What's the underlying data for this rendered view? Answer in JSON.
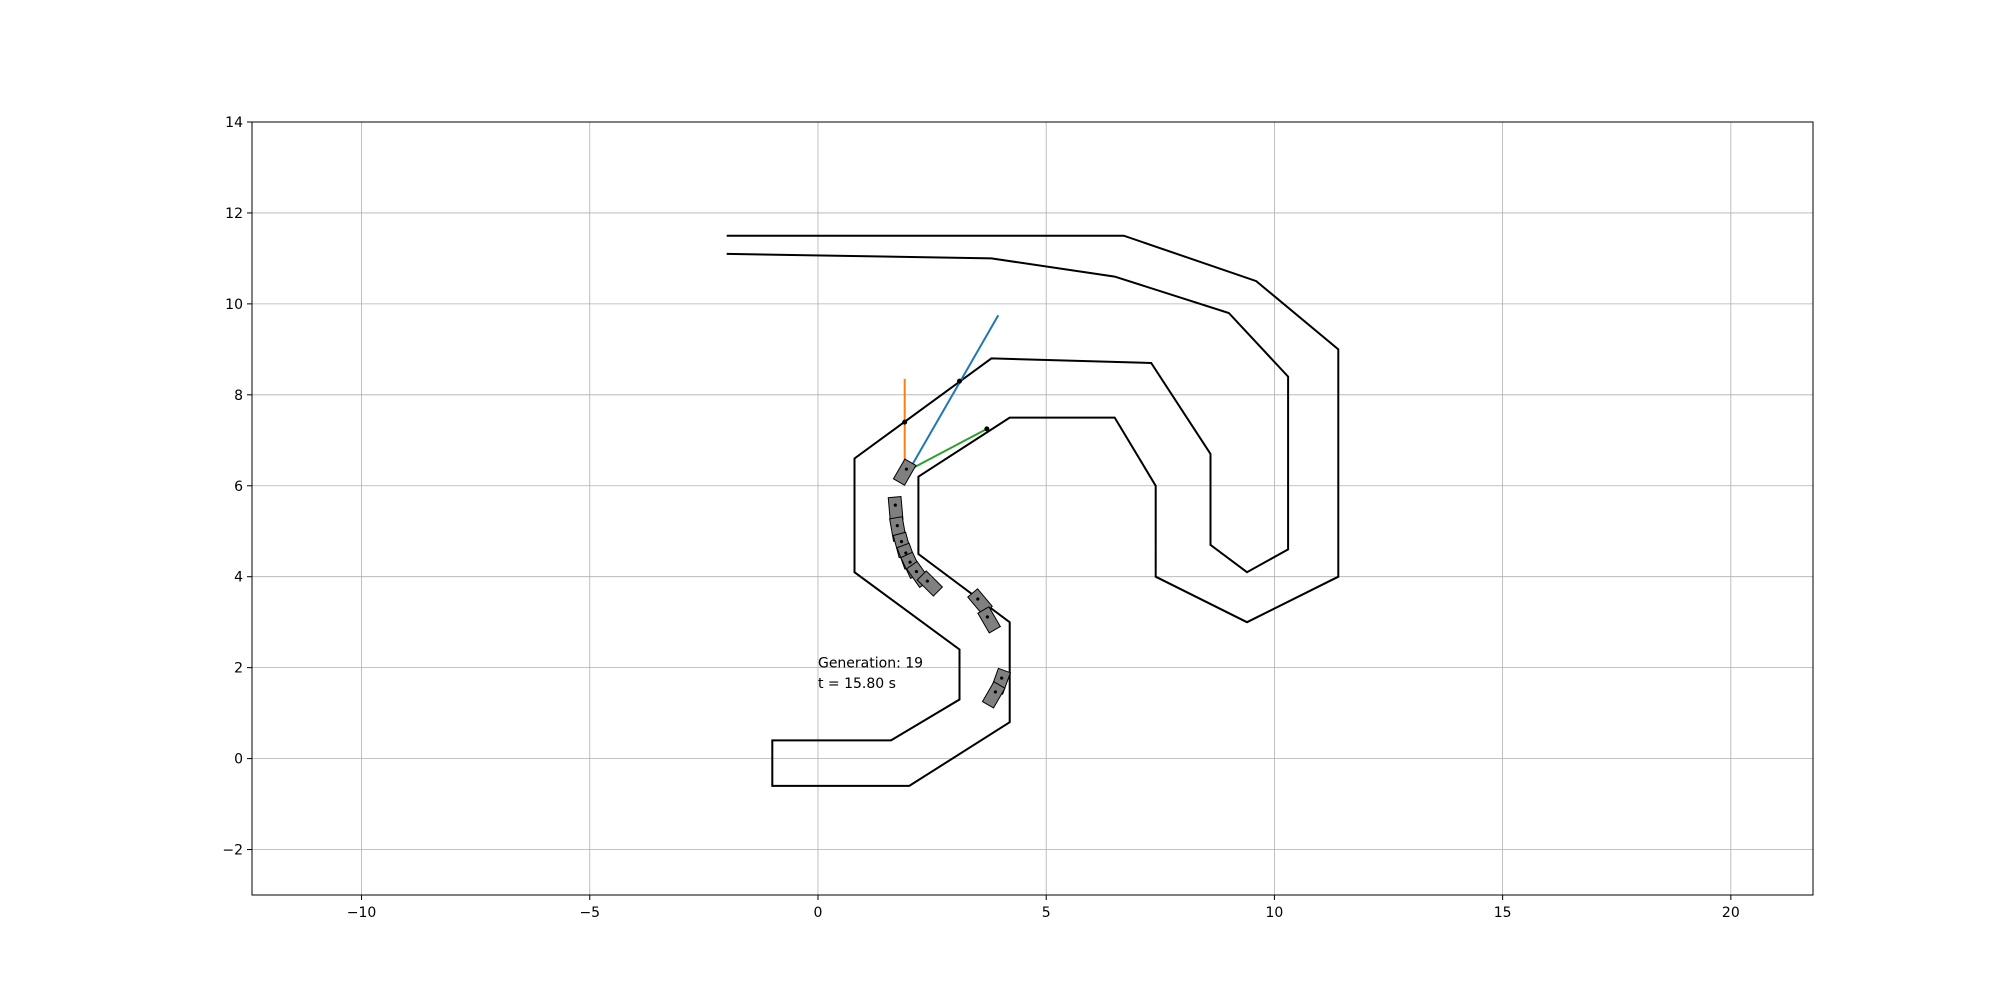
{
  "chart_data": {
    "type": "line",
    "title": "",
    "xlabel": "",
    "ylabel": "",
    "xlim": [
      -12.4,
      21.8
    ],
    "ylim": [
      -3,
      14
    ],
    "xticks": [
      -10,
      -5,
      0,
      5,
      10,
      15,
      20
    ],
    "yticks": [
      -2,
      0,
      2,
      4,
      6,
      8,
      10,
      12,
      14
    ],
    "xtick_labels": [
      "−10",
      "−5",
      "0",
      "5",
      "10",
      "15",
      "20"
    ],
    "ytick_labels": [
      "−2",
      "0",
      "2",
      "4",
      "6",
      "8",
      "10",
      "12",
      "14"
    ],
    "grid": true,
    "legend": "none",
    "series": [
      {
        "kind": "track-outer-boundary",
        "color": "#000000",
        "x": [
          -2.0,
          6.7,
          9.6,
          11.4,
          11.4,
          9.4,
          7.4,
          7.4,
          6.5,
          4.2,
          2.2,
          2.2,
          2.2,
          4.2,
          4.2,
          2.0,
          -1.0,
          -1.0,
          1.6,
          3.1,
          3.1,
          0.8,
          0.8,
          3.8,
          7.3,
          8.6,
          8.6,
          9.4,
          10.3,
          10.3,
          9.0,
          6.5,
          3.8,
          -2.0
        ],
        "y": [
          11.5,
          11.5,
          10.5,
          9.0,
          4.0,
          3.0,
          4.0,
          6.0,
          7.5,
          7.5,
          6.2,
          6.2,
          4.5,
          3.0,
          0.8,
          -0.6,
          -0.6,
          0.4,
          0.4,
          1.3,
          2.4,
          4.1,
          6.6,
          8.8,
          8.7,
          6.7,
          4.7,
          4.1,
          4.6,
          8.4,
          9.8,
          10.6,
          11.0,
          11.1
        ]
      },
      {
        "kind": "sensor-ray",
        "color": "#1f77b4",
        "x": [
          2.0,
          3.95
        ],
        "y": [
          6.35,
          9.75
        ]
      },
      {
        "kind": "sensor-ray",
        "color": "#ff7f0e",
        "x": [
          1.9,
          1.9
        ],
        "y": [
          6.35,
          8.35
        ]
      },
      {
        "kind": "sensor-ray",
        "color": "#2ca02c",
        "x": [
          2.0,
          3.7
        ],
        "y": [
          6.35,
          7.25
        ]
      }
    ],
    "sensor_hits": [
      {
        "x": 3.1,
        "y": 8.3
      },
      {
        "x": 1.9,
        "y": 7.4
      },
      {
        "x": 3.7,
        "y": 7.25
      }
    ],
    "cars": [
      {
        "x": 1.9,
        "y": 6.3,
        "angle_deg": 60
      },
      {
        "x": 1.7,
        "y": 5.5,
        "angle_deg": 95
      },
      {
        "x": 1.75,
        "y": 5.05,
        "angle_deg": 100
      },
      {
        "x": 1.85,
        "y": 4.7,
        "angle_deg": 105
      },
      {
        "x": 1.95,
        "y": 4.45,
        "angle_deg": 110
      },
      {
        "x": 2.05,
        "y": 4.25,
        "angle_deg": 115
      },
      {
        "x": 2.2,
        "y": 4.05,
        "angle_deg": 125
      },
      {
        "x": 2.45,
        "y": 3.85,
        "angle_deg": 135
      },
      {
        "x": 3.55,
        "y": 3.45,
        "angle_deg": 130
      },
      {
        "x": 3.75,
        "y": 3.05,
        "angle_deg": 120
      },
      {
        "x": 4.0,
        "y": 1.7,
        "angle_deg": 70
      },
      {
        "x": 3.85,
        "y": 1.4,
        "angle_deg": 60
      }
    ],
    "annotations": [
      {
        "text": "Generation: 19",
        "x": 0.0,
        "y": 2.0
      },
      {
        "text": "t = 15.80 s",
        "x": 0.0,
        "y": 1.55
      }
    ]
  }
}
